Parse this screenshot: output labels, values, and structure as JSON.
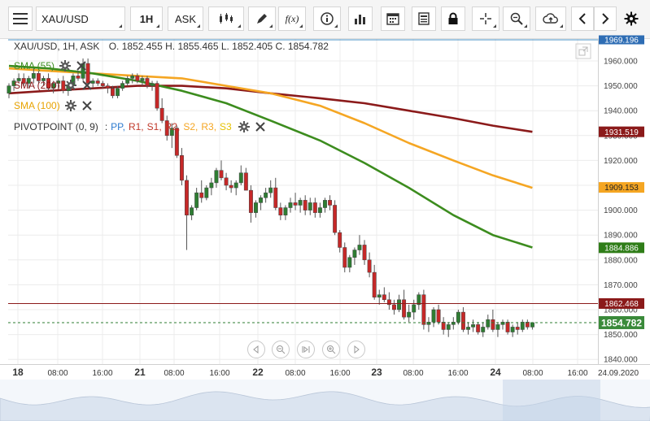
{
  "toolbar": {
    "symbol": "XAU/USD",
    "timeframe": "1H",
    "price_type": "ASK",
    "fx_label": "f(x)"
  },
  "chart_header": {
    "title": "XAU/USD, 1H, ASK",
    "ohlc": "O. 1852.455 H. 1855.465 L. 1852.405 C. 1854.782"
  },
  "indicators": {
    "sma55": {
      "label": "SMA (55)",
      "color": "#3c8c1e",
      "last_value": "1884.886"
    },
    "sma200": {
      "label": "SMA (200)",
      "color": "#8b1a1a",
      "last_value": "1931.519"
    },
    "sma100": {
      "label": "SMA (100)",
      "color": "#f5a623",
      "last_value": "1909.153"
    },
    "pivot": {
      "label": "PIVOTPOINT (0, 9)",
      "sep": ":",
      "items": [
        {
          "text": "PP,",
          "color": "#2e7bcf"
        },
        {
          "text": "R1,",
          "color": "#c0392b"
        },
        {
          "text": "S1,",
          "color": "#c0392b"
        },
        {
          "text": "R2,",
          "color": "#c0392b"
        },
        {
          "text": "S2,",
          "color": "#f5a623"
        },
        {
          "text": "R3,",
          "color": "#f5a623"
        },
        {
          "text": "S3",
          "color": "#e6c200"
        }
      ]
    }
  },
  "price_axis": {
    "ticks": [
      "1960.000",
      "1950.000",
      "1940.000",
      "1930.000",
      "1920.000",
      "1910.000",
      "1900.000",
      "1890.000",
      "1880.000",
      "1870.000",
      "1860.000",
      "1850.000",
      "1840.000"
    ],
    "top_label": "1969.196",
    "pivot_label": "1862.468",
    "current_label": "1854.782"
  },
  "time_axis": {
    "labels": [
      "18",
      "08:00",
      "16:00",
      "21",
      "08:00",
      "16:00",
      "22",
      "08:00",
      "16:00",
      "23",
      "08:00",
      "16:00",
      "24",
      "08:00",
      "16:00",
      "24.09.2020"
    ]
  },
  "colors": {
    "bull": "#2e7d32",
    "bear": "#c62828",
    "sma55": "#3c8c1e",
    "sma100": "#f5a623",
    "sma200": "#8b1a1a",
    "pivot_line": "#8b1a1a",
    "current_line": "#2e7d32"
  },
  "chart_data": {
    "type": "candlestick",
    "title": "XAU/USD, 1H, ASK",
    "ylim": [
      1837,
      1971
    ],
    "overlays": {
      "sma55": [
        [
          0,
          1958
        ],
        [
          8,
          1957
        ],
        [
          17,
          1955
        ],
        [
          26,
          1952
        ],
        [
          35,
          1948
        ],
        [
          44,
          1943
        ],
        [
          53,
          1936
        ],
        [
          63,
          1928
        ],
        [
          72,
          1919
        ],
        [
          81,
          1909
        ],
        [
          90,
          1898
        ],
        [
          98,
          1890
        ],
        [
          106,
          1885
        ]
      ],
      "sma100": [
        [
          0,
          1957
        ],
        [
          8,
          1956
        ],
        [
          17,
          1955
        ],
        [
          26,
          1954
        ],
        [
          35,
          1953
        ],
        [
          44,
          1950
        ],
        [
          53,
          1947
        ],
        [
          63,
          1942
        ],
        [
          72,
          1935
        ],
        [
          81,
          1927
        ],
        [
          90,
          1920
        ],
        [
          98,
          1914
        ],
        [
          106,
          1909
        ]
      ],
      "sma200": [
        [
          0,
          1947
        ],
        [
          8,
          1948
        ],
        [
          17,
          1949
        ],
        [
          26,
          1950
        ],
        [
          35,
          1950
        ],
        [
          44,
          1949
        ],
        [
          53,
          1947
        ],
        [
          63,
          1945
        ],
        [
          72,
          1943
        ],
        [
          81,
          1940
        ],
        [
          90,
          1937
        ],
        [
          98,
          1934
        ],
        [
          106,
          1931.5
        ]
      ]
    },
    "candles_ohlc": [
      [
        1947,
        1951,
        1945,
        1950
      ],
      [
        1950,
        1953,
        1948,
        1952
      ],
      [
        1952,
        1955,
        1951,
        1953
      ],
      [
        1953,
        1955,
        1950,
        1951
      ],
      [
        1951,
        1954,
        1949,
        1953
      ],
      [
        1953,
        1957,
        1951,
        1955
      ],
      [
        1955,
        1956,
        1951,
        1952
      ],
      [
        1952,
        1954,
        1950,
        1953
      ],
      [
        1953,
        1955,
        1948,
        1949
      ],
      [
        1949,
        1952,
        1947,
        1951
      ],
      [
        1951,
        1953,
        1949,
        1952
      ],
      [
        1952,
        1954,
        1947,
        1948
      ],
      [
        1948,
        1951,
        1946,
        1950
      ],
      [
        1950,
        1955,
        1949,
        1954
      ],
      [
        1954,
        1956,
        1952,
        1953
      ],
      [
        1953,
        1961,
        1952,
        1959
      ],
      [
        1959,
        1961,
        1950,
        1951
      ],
      [
        1951,
        1953,
        1949,
        1952
      ],
      [
        1952,
        1953,
        1950,
        1951
      ],
      [
        1951,
        1952,
        1949,
        1950
      ],
      [
        1950,
        1951,
        1947,
        1949
      ],
      [
        1949,
        1950,
        1945,
        1946
      ],
      [
        1946,
        1950,
        1945,
        1949
      ],
      [
        1949,
        1952,
        1948,
        1951
      ],
      [
        1951,
        1954,
        1950,
        1953
      ],
      [
        1953,
        1955,
        1951,
        1954
      ],
      [
        1954,
        1955,
        1951,
        1952
      ],
      [
        1952,
        1954,
        1950,
        1953
      ],
      [
        1953,
        1954,
        1949,
        1950
      ],
      [
        1950,
        1952,
        1948,
        1951
      ],
      [
        1951,
        1952,
        1940,
        1941
      ],
      [
        1941,
        1945,
        1935,
        1936
      ],
      [
        1936,
        1938,
        1928,
        1930
      ],
      [
        1930,
        1935,
        1925,
        1933
      ],
      [
        1933,
        1934,
        1921,
        1922
      ],
      [
        1922,
        1925,
        1910,
        1912
      ],
      [
        1912,
        1914,
        1884,
        1898
      ],
      [
        1898,
        1902,
        1896,
        1901
      ],
      [
        1901,
        1909,
        1900,
        1907
      ],
      [
        1907,
        1912,
        1903,
        1905
      ],
      [
        1905,
        1910,
        1904,
        1909
      ],
      [
        1909,
        1913,
        1906,
        1911
      ],
      [
        1911,
        1917,
        1909,
        1916
      ],
      [
        1916,
        1920,
        1912,
        1913
      ],
      [
        1913,
        1915,
        1908,
        1910
      ],
      [
        1910,
        1912,
        1907,
        1909
      ],
      [
        1909,
        1912,
        1906,
        1911
      ],
      [
        1911,
        1918,
        1910,
        1915
      ],
      [
        1915,
        1917,
        1908,
        1908
      ],
      [
        1908,
        1910,
        1895,
        1899
      ],
      [
        1899,
        1904,
        1897,
        1903
      ],
      [
        1903,
        1906,
        1900,
        1905
      ],
      [
        1905,
        1909,
        1903,
        1907
      ],
      [
        1907,
        1912,
        1905,
        1909
      ],
      [
        1909,
        1913,
        1900,
        1901
      ],
      [
        1901,
        1903,
        1896,
        1898
      ],
      [
        1898,
        1902,
        1896,
        1901
      ],
      [
        1901,
        1905,
        1899,
        1903
      ],
      [
        1903,
        1907,
        1900,
        1902
      ],
      [
        1902,
        1905,
        1899,
        1904
      ],
      [
        1904,
        1906,
        1898,
        1900
      ],
      [
        1900,
        1905,
        1898,
        1903
      ],
      [
        1903,
        1905,
        1897,
        1899
      ],
      [
        1899,
        1903,
        1897,
        1901
      ],
      [
        1901,
        1905,
        1899,
        1904
      ],
      [
        1904,
        1906,
        1900,
        1902
      ],
      [
        1902,
        1904,
        1890,
        1891
      ],
      [
        1891,
        1892,
        1883,
        1885
      ],
      [
        1885,
        1887,
        1875,
        1877
      ],
      [
        1877,
        1882,
        1875,
        1881
      ],
      [
        1881,
        1885,
        1878,
        1884
      ],
      [
        1884,
        1890,
        1882,
        1886
      ],
      [
        1886,
        1888,
        1878,
        1880
      ],
      [
        1880,
        1883,
        1873,
        1875
      ],
      [
        1875,
        1878,
        1864,
        1865
      ],
      [
        1865,
        1868,
        1862,
        1866
      ],
      [
        1866,
        1869,
        1863,
        1864
      ],
      [
        1864,
        1867,
        1860,
        1862
      ],
      [
        1862,
        1864,
        1858,
        1860
      ],
      [
        1860,
        1866,
        1859,
        1864
      ],
      [
        1864,
        1868,
        1856,
        1857
      ],
      [
        1857,
        1862,
        1855,
        1859
      ],
      [
        1859,
        1864,
        1856,
        1862
      ],
      [
        1862,
        1867,
        1860,
        1866
      ],
      [
        1866,
        1868,
        1852,
        1854
      ],
      [
        1854,
        1857,
        1851,
        1855
      ],
      [
        1855,
        1861,
        1853,
        1860
      ],
      [
        1860,
        1862,
        1854,
        1855
      ],
      [
        1855,
        1857,
        1850,
        1852
      ],
      [
        1852,
        1855,
        1849,
        1854
      ],
      [
        1854,
        1857,
        1852,
        1855
      ],
      [
        1855,
        1860,
        1854,
        1859
      ],
      [
        1859,
        1861,
        1851,
        1852
      ],
      [
        1852,
        1855,
        1850,
        1853
      ],
      [
        1853,
        1856,
        1851,
        1854
      ],
      [
        1854,
        1855,
        1850,
        1851
      ],
      [
        1851,
        1855,
        1849,
        1853
      ],
      [
        1853,
        1858,
        1852,
        1856
      ],
      [
        1856,
        1860,
        1851,
        1852
      ],
      [
        1852,
        1855,
        1849,
        1854
      ],
      [
        1854,
        1856,
        1852,
        1855
      ],
      [
        1855,
        1856,
        1850,
        1851
      ],
      [
        1851,
        1854,
        1849,
        1853
      ],
      [
        1853,
        1855,
        1850,
        1852
      ],
      [
        1852,
        1856,
        1851,
        1855
      ],
      [
        1855,
        1856,
        1852,
        1853
      ],
      [
        1853,
        1855,
        1852,
        1854.8
      ]
    ]
  }
}
